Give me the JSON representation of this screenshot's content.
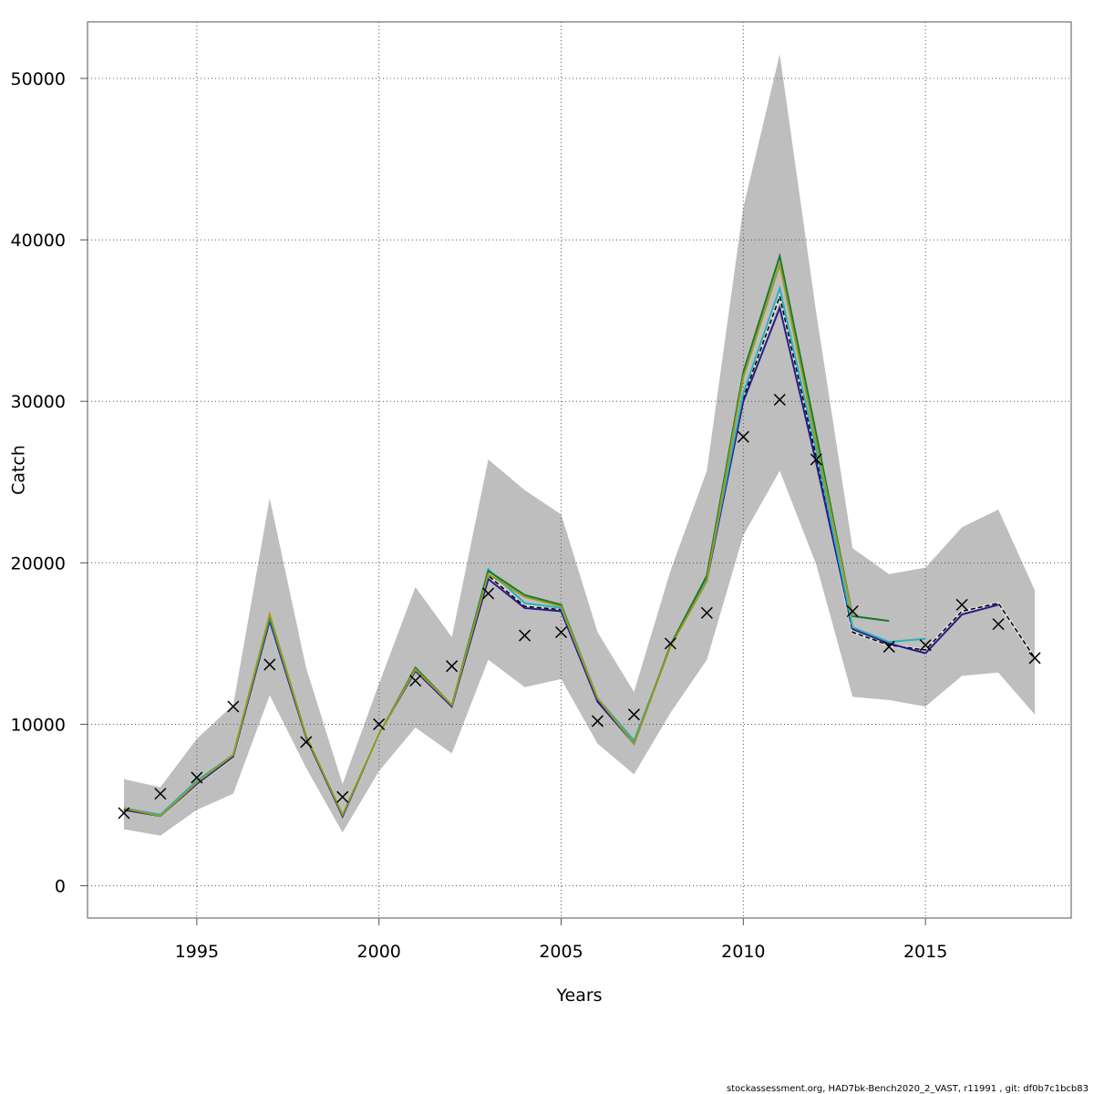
{
  "chart_data": {
    "type": "line",
    "xlabel": "Years",
    "ylabel": "Catch",
    "xlim": [
      1992,
      2019
    ],
    "ylim": [
      -2000,
      53500
    ],
    "x_ticks": [
      1995,
      2000,
      2005,
      2010,
      2015
    ],
    "y_ticks": [
      0,
      10000,
      20000,
      30000,
      40000,
      50000
    ],
    "grid": true,
    "confidence_band": {
      "x": [
        1993,
        1994,
        1995,
        1996,
        1997,
        1998,
        1999,
        2000,
        2001,
        2002,
        2003,
        2004,
        2005,
        2006,
        2007,
        2008,
        2009,
        2010,
        2011,
        2012,
        2013,
        2014,
        2015,
        2016,
        2017,
        2018
      ],
      "upper": [
        6600,
        6100,
        9100,
        11200,
        24000,
        13500,
        6300,
        12500,
        18500,
        15400,
        26400,
        24500,
        23000,
        15700,
        12000,
        19500,
        25700,
        42000,
        51500,
        35500,
        20900,
        19300,
        19700,
        22200,
        23300,
        18300
      ],
      "lower": [
        3500,
        3100,
        4700,
        5700,
        11800,
        7300,
        3300,
        7100,
        9800,
        8200,
        14000,
        12300,
        12800,
        8800,
        6900,
        10700,
        14000,
        21700,
        25700,
        19900,
        11700,
        11500,
        11100,
        13000,
        13200,
        10600
      ],
      "color": "#bebebe"
    },
    "series": [
      {
        "color": "#000000",
        "dashed": true,
        "x": [
          1993,
          1994,
          1995,
          1996,
          1997,
          1998,
          1999,
          2000,
          2001,
          2002,
          2003,
          2004,
          2005,
          2006,
          2007,
          2008,
          2009,
          2010,
          2011,
          2012,
          2013,
          2014,
          2015,
          2016,
          2017,
          2018
        ],
        "values": [
          4700,
          4300,
          6300,
          8000,
          16500,
          9300,
          4400,
          9400,
          13400,
          11200,
          19200,
          17300,
          17100,
          11500,
          8900,
          14800,
          19000,
          30200,
          36500,
          26600,
          15700,
          14900,
          14600,
          17000,
          17500,
          14100
        ]
      },
      {
        "color": "#2a1a8a",
        "dashed": false,
        "x": [
          1993,
          1994,
          1995,
          1996,
          1997,
          1998,
          1999,
          2000,
          2001,
          2002,
          2003,
          2004,
          2005,
          2006,
          2007,
          2008,
          2009,
          2010,
          2011,
          2012,
          2013,
          2014,
          2015,
          2016,
          2017
        ],
        "values": [
          4700,
          4300,
          6300,
          8000,
          16400,
          9200,
          4300,
          9400,
          13300,
          11100,
          19000,
          17200,
          17000,
          11400,
          8800,
          14800,
          18900,
          30000,
          35800,
          26200,
          15900,
          15000,
          14400,
          16800,
          17400
        ]
      },
      {
        "color": "#2ab2b8",
        "dashed": false,
        "x": [
          1993,
          1994,
          1995,
          1996,
          1997,
          1998,
          1999,
          2000,
          2001,
          2002,
          2003,
          2004,
          2005,
          2006,
          2007,
          2008,
          2009,
          2010,
          2011,
          2012,
          2013,
          2014,
          2015
        ],
        "values": [
          4800,
          4400,
          6500,
          8100,
          16600,
          9300,
          4400,
          9400,
          13400,
          11200,
          19600,
          17500,
          17200,
          11600,
          9000,
          14800,
          19000,
          30500,
          37000,
          27000,
          16000,
          15100,
          15300
        ]
      },
      {
        "color": "#137a2c",
        "dashed": false,
        "x": [
          1993,
          1994,
          1995,
          1996,
          1997,
          1998,
          1999,
          2000,
          2001,
          2002,
          2003,
          2004,
          2005,
          2006,
          2007,
          2008,
          2009,
          2010,
          2011,
          2012,
          2013,
          2014
        ],
        "values": [
          4800,
          4300,
          6400,
          8100,
          16700,
          9300,
          4400,
          9400,
          13500,
          11200,
          19500,
          18000,
          17400,
          11600,
          8800,
          14900,
          19200,
          31800,
          39000,
          28000,
          16700,
          16400
        ]
      },
      {
        "color": "#9a9a22",
        "dashed": false,
        "x": [
          1993,
          1994,
          1995,
          1996,
          1997,
          1998,
          1999,
          2000,
          2001,
          2002,
          2003,
          2004,
          2005,
          2006,
          2007,
          2008,
          2009,
          2010,
          2011,
          2012,
          2013
        ],
        "values": [
          4800,
          4300,
          6400,
          8100,
          16800,
          9300,
          4400,
          9400,
          13400,
          11200,
          19300,
          17900,
          17300,
          11600,
          8800,
          14800,
          18900,
          31500,
          38500,
          27500,
          16700
        ]
      }
    ],
    "observed": {
      "marker": "x",
      "x": [
        1993,
        1994,
        1995,
        1996,
        1997,
        1998,
        1999,
        2000,
        2001,
        2002,
        2003,
        2004,
        2005,
        2006,
        2007,
        2008,
        2009,
        2010,
        2011,
        2012,
        2013,
        2014,
        2015,
        2016,
        2017,
        2018
      ],
      "values": [
        4500,
        5700,
        6700,
        11100,
        13700,
        8900,
        5500,
        10000,
        12700,
        13600,
        18100,
        15500,
        15700,
        10200,
        10600,
        15000,
        16900,
        27800,
        30100,
        26400,
        17000,
        14800,
        14900,
        17400,
        16200,
        14100
      ]
    }
  },
  "caption": "stockassessment.org, HAD7bk-Bench2020_2_VAST, r11991 , git: df0b7c1bcb83"
}
